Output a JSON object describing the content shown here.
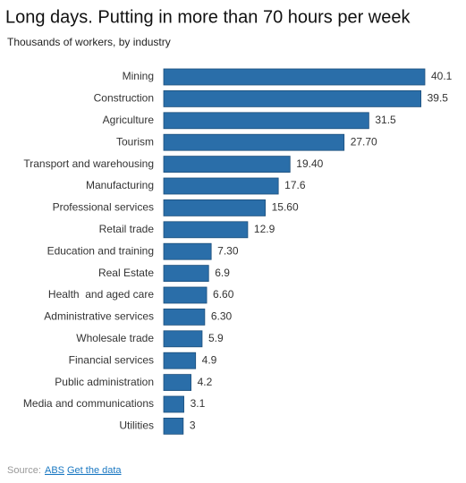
{
  "chart_data": {
    "type": "barh",
    "title": "Long days. Putting in more than 70 hours per week",
    "subtitle": "Thousands of workers, by industry",
    "categories": [
      "Mining",
      "Construction",
      "Agriculture",
      "Tourism",
      "Transport and warehousing",
      "Manufacturing",
      "Professional services",
      "Retail trade",
      "Education and training",
      "Real Estate",
      "Health  and aged care",
      "Administrative services",
      "Wholesale trade",
      "Financial services",
      "Public administration",
      "Media and communications",
      "Utilities"
    ],
    "values": [
      40.1,
      39.5,
      31.5,
      27.7,
      19.4,
      17.6,
      15.6,
      12.9,
      7.3,
      6.9,
      6.6,
      6.3,
      5.9,
      4.9,
      4.2,
      3.1,
      3
    ],
    "value_labels": [
      "40.1",
      "39.5",
      "31.5",
      "27.70",
      "19.40",
      "17.6",
      "15.60",
      "12.9",
      "7.30",
      "6.9",
      "6.60",
      "6.30",
      "5.9",
      "4.9",
      "4.2",
      "3.1",
      "3"
    ],
    "color": "#2a6ea9",
    "source_label": "Source:",
    "source": "ABS",
    "data_link": "Get the data"
  }
}
